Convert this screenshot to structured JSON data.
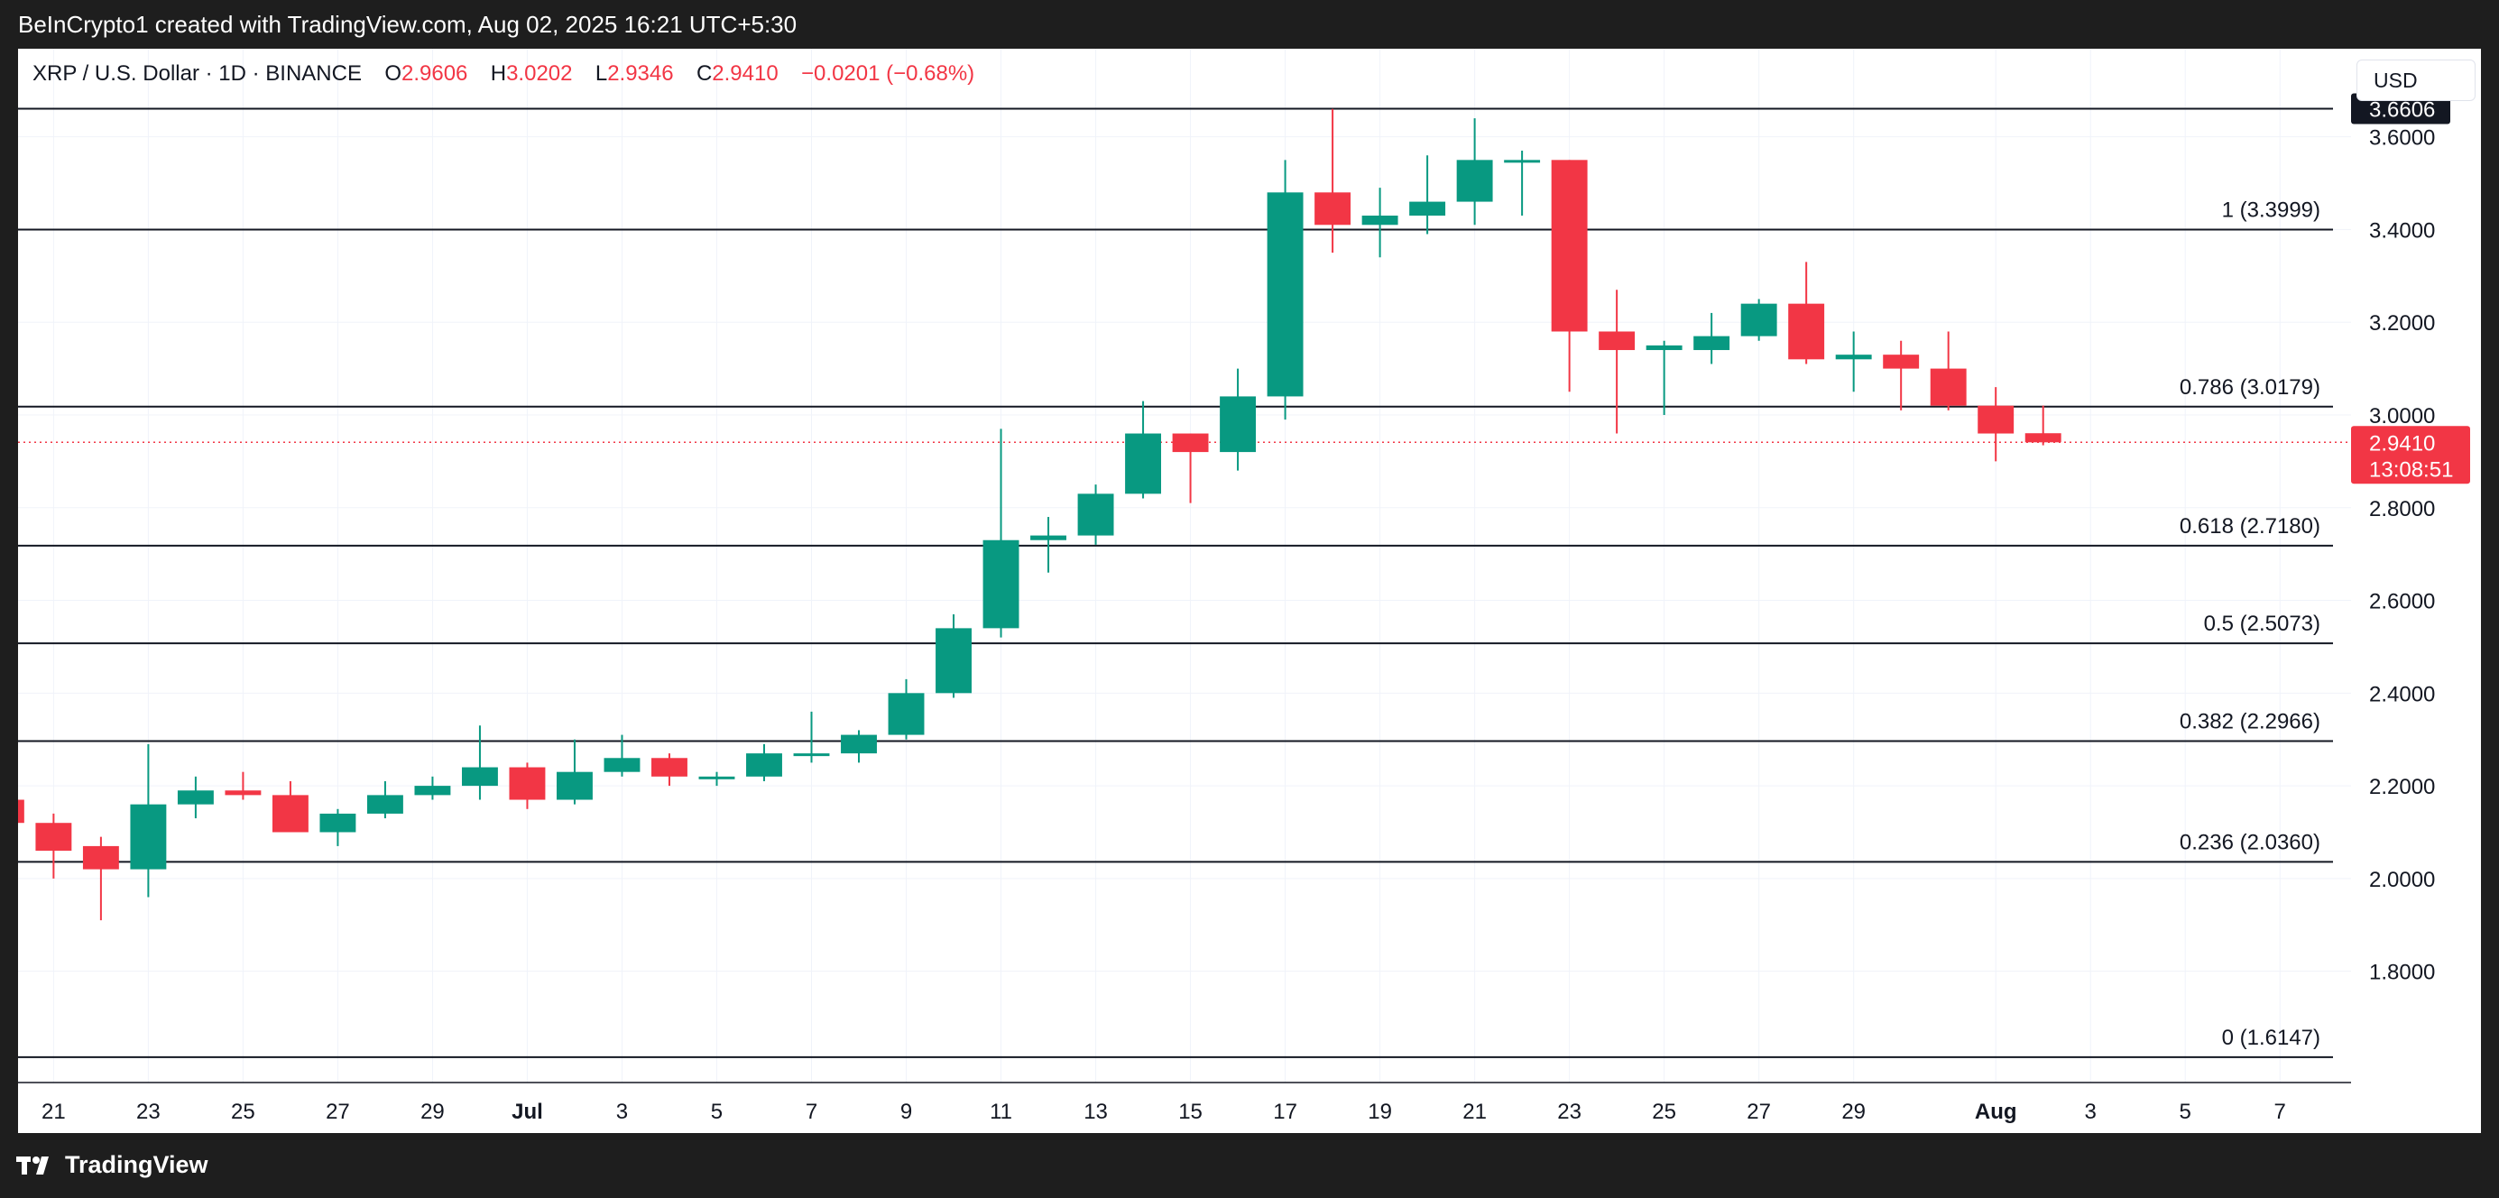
{
  "header": {
    "text": "BeInCrypto1 created with TradingView.com, Aug 02, 2025 16:21 UTC+5:30"
  },
  "legend": {
    "symbol": "XRP / U.S. Dollar · 1D · BINANCE",
    "o_label": "O",
    "o_value": "2.9606",
    "h_label": "H",
    "h_value": "3.0202",
    "l_label": "L",
    "l_value": "2.9346",
    "c_label": "C",
    "c_value": "2.9410",
    "change": "−0.0201 (−0.68%)"
  },
  "currency_button": {
    "label": "USD"
  },
  "footer": {
    "brand": "TradingView"
  },
  "colors": {
    "up": "#089981",
    "down": "#f23645",
    "grid": "#f0f3fa",
    "fib_line": "#131722",
    "high_tag_bg": "#131722",
    "price_tag_bg": "#f23645"
  },
  "chart_data": {
    "type": "candlestick",
    "symbol": "XRP / U.S. Dollar",
    "interval": "1D",
    "exchange": "BINANCE",
    "currency": "USD",
    "ylim": [
      1.56,
      3.79
    ],
    "y_ticks": [
      "3.6000",
      "3.4000",
      "3.2000",
      "3.0000",
      "2.8000",
      "2.6000",
      "2.4000",
      "2.2000",
      "2.0000",
      "1.8000"
    ],
    "x_ticks": [
      {
        "day": 21,
        "label": "21"
      },
      {
        "day": 23,
        "label": "23"
      },
      {
        "day": 25,
        "label": "25"
      },
      {
        "day": 27,
        "label": "27"
      },
      {
        "day": 29,
        "label": "29"
      },
      {
        "day": 31,
        "label": "Jul"
      },
      {
        "day": 33,
        "label": "3"
      },
      {
        "day": 35,
        "label": "5"
      },
      {
        "day": 37,
        "label": "7"
      },
      {
        "day": 39,
        "label": "9"
      },
      {
        "day": 41,
        "label": "11"
      },
      {
        "day": 43,
        "label": "13"
      },
      {
        "day": 45,
        "label": "15"
      },
      {
        "day": 47,
        "label": "17"
      },
      {
        "day": 49,
        "label": "19"
      },
      {
        "day": 51,
        "label": "21"
      },
      {
        "day": 53,
        "label": "23"
      },
      {
        "day": 55,
        "label": "25"
      },
      {
        "day": 57,
        "label": "27"
      },
      {
        "day": 59,
        "label": "29"
      },
      {
        "day": 62,
        "label": "Aug"
      },
      {
        "day": 64,
        "label": "3"
      },
      {
        "day": 66,
        "label": "5"
      },
      {
        "day": 68,
        "label": "7"
      }
    ],
    "x_day_range": [
      20.25,
      69.5
    ],
    "candles": [
      {
        "day": 20,
        "o": 2.17,
        "h": 2.2,
        "l": 2.11,
        "c": 2.12
      },
      {
        "day": 21,
        "o": 2.12,
        "h": 2.14,
        "l": 2.0,
        "c": 2.06
      },
      {
        "day": 22,
        "o": 2.07,
        "h": 2.09,
        "l": 1.91,
        "c": 2.02
      },
      {
        "day": 23,
        "o": 2.02,
        "h": 2.29,
        "l": 1.96,
        "c": 2.16
      },
      {
        "day": 24,
        "o": 2.16,
        "h": 2.22,
        "l": 2.13,
        "c": 2.19
      },
      {
        "day": 25,
        "o": 2.19,
        "h": 2.23,
        "l": 2.17,
        "c": 2.18
      },
      {
        "day": 26,
        "o": 2.18,
        "h": 2.21,
        "l": 2.1,
        "c": 2.1
      },
      {
        "day": 27,
        "o": 2.1,
        "h": 2.15,
        "l": 2.07,
        "c": 2.14
      },
      {
        "day": 28,
        "o": 2.14,
        "h": 2.21,
        "l": 2.13,
        "c": 2.18
      },
      {
        "day": 29,
        "o": 2.18,
        "h": 2.22,
        "l": 2.17,
        "c": 2.2
      },
      {
        "day": 30,
        "o": 2.2,
        "h": 2.33,
        "l": 2.17,
        "c": 2.24
      },
      {
        "day": 31,
        "o": 2.24,
        "h": 2.25,
        "l": 2.15,
        "c": 2.17
      },
      {
        "day": 32,
        "o": 2.17,
        "h": 2.3,
        "l": 2.16,
        "c": 2.23
      },
      {
        "day": 33,
        "o": 2.23,
        "h": 2.31,
        "l": 2.22,
        "c": 2.26
      },
      {
        "day": 34,
        "o": 2.26,
        "h": 2.27,
        "l": 2.2,
        "c": 2.22
      },
      {
        "day": 35,
        "o": 2.22,
        "h": 2.23,
        "l": 2.2,
        "c": 2.22
      },
      {
        "day": 36,
        "o": 2.22,
        "h": 2.29,
        "l": 2.21,
        "c": 2.27
      },
      {
        "day": 37,
        "o": 2.27,
        "h": 2.36,
        "l": 2.25,
        "c": 2.27
      },
      {
        "day": 38,
        "o": 2.27,
        "h": 2.32,
        "l": 2.25,
        "c": 2.31
      },
      {
        "day": 39,
        "o": 2.31,
        "h": 2.43,
        "l": 2.3,
        "c": 2.4
      },
      {
        "day": 40,
        "o": 2.4,
        "h": 2.57,
        "l": 2.39,
        "c": 2.54
      },
      {
        "day": 41,
        "o": 2.54,
        "h": 2.97,
        "l": 2.52,
        "c": 2.73
      },
      {
        "day": 42,
        "o": 2.73,
        "h": 2.78,
        "l": 2.66,
        "c": 2.74
      },
      {
        "day": 43,
        "o": 2.74,
        "h": 2.85,
        "l": 2.72,
        "c": 2.83
      },
      {
        "day": 44,
        "o": 2.83,
        "h": 3.03,
        "l": 2.82,
        "c": 2.96
      },
      {
        "day": 45,
        "o": 2.96,
        "h": 2.96,
        "l": 2.81,
        "c": 2.92
      },
      {
        "day": 46,
        "o": 2.92,
        "h": 3.1,
        "l": 2.88,
        "c": 3.04
      },
      {
        "day": 47,
        "o": 3.04,
        "h": 3.55,
        "l": 2.99,
        "c": 3.48
      },
      {
        "day": 48,
        "o": 3.48,
        "h": 3.66,
        "l": 3.35,
        "c": 3.41
      },
      {
        "day": 49,
        "o": 3.41,
        "h": 3.49,
        "l": 3.34,
        "c": 3.43
      },
      {
        "day": 50,
        "o": 3.43,
        "h": 3.56,
        "l": 3.39,
        "c": 3.46
      },
      {
        "day": 51,
        "o": 3.46,
        "h": 3.64,
        "l": 3.41,
        "c": 3.55
      },
      {
        "day": 52,
        "o": 3.55,
        "h": 3.57,
        "l": 3.43,
        "c": 3.55
      },
      {
        "day": 53,
        "o": 3.55,
        "h": 3.55,
        "l": 3.05,
        "c": 3.18
      },
      {
        "day": 54,
        "o": 3.18,
        "h": 3.27,
        "l": 2.96,
        "c": 3.14
      },
      {
        "day": 55,
        "o": 3.14,
        "h": 3.16,
        "l": 3.0,
        "c": 3.15
      },
      {
        "day": 56,
        "o": 3.14,
        "h": 3.22,
        "l": 3.11,
        "c": 3.17
      },
      {
        "day": 57,
        "o": 3.17,
        "h": 3.25,
        "l": 3.16,
        "c": 3.24
      },
      {
        "day": 58,
        "o": 3.24,
        "h": 3.33,
        "l": 3.11,
        "c": 3.12
      },
      {
        "day": 59,
        "o": 3.12,
        "h": 3.18,
        "l": 3.05,
        "c": 3.13
      },
      {
        "day": 60,
        "o": 3.13,
        "h": 3.16,
        "l": 3.01,
        "c": 3.1
      },
      {
        "day": 61,
        "o": 3.1,
        "h": 3.18,
        "l": 3.01,
        "c": 3.02
      },
      {
        "day": 62,
        "o": 3.02,
        "h": 3.06,
        "l": 2.9,
        "c": 2.96
      },
      {
        "day": 63,
        "o": 2.9606,
        "h": 3.0202,
        "l": 2.9346,
        "c": 2.941
      }
    ],
    "fib_levels": [
      {
        "ratio": "1",
        "value": 3.3999,
        "label": "1 (3.3999)"
      },
      {
        "ratio": "0.786",
        "value": 3.0179,
        "label": "0.786 (3.0179)"
      },
      {
        "ratio": "0.618",
        "value": 2.718,
        "label": "0.618 (2.7180)"
      },
      {
        "ratio": "0.5",
        "value": 2.5073,
        "label": "0.5 (2.5073)"
      },
      {
        "ratio": "0.382",
        "value": 2.2966,
        "label": "0.382 (2.2966)"
      },
      {
        "ratio": "0.236",
        "value": 2.036,
        "label": "0.236 (2.0360)"
      },
      {
        "ratio": "0",
        "value": 1.6147,
        "label": "0 (1.6147)"
      }
    ],
    "high_line": {
      "value": 3.6606,
      "label": "3.6606"
    },
    "last_price": {
      "value": 2.941,
      "label": "2.9410",
      "countdown": "13:08:51"
    }
  }
}
